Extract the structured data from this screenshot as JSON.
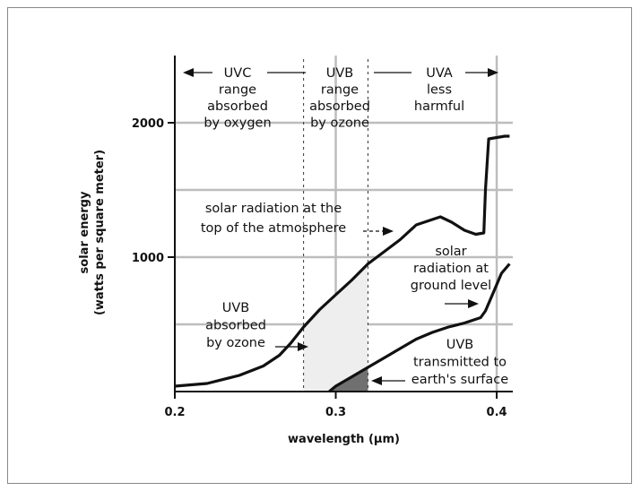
{
  "chart_data": {
    "type": "line",
    "xlabel": "wavelength (μm)",
    "ylabel_line1": "solar energy",
    "ylabel_line2": "(watts per square meter)",
    "xlim": [
      0.2,
      0.41
    ],
    "ylim": [
      0,
      2500
    ],
    "x_ticks": [
      {
        "value": 0.2,
        "label": "0.2"
      },
      {
        "value": 0.3,
        "label": "0.3"
      },
      {
        "value": 0.4,
        "label": "0.4"
      }
    ],
    "y_ticks": [
      {
        "value": 1000,
        "label": "1000"
      },
      {
        "value": 2000,
        "label": "2000"
      }
    ],
    "grid_x": [
      0.3,
      0.4
    ],
    "grid_y": [
      500,
      1000,
      1500,
      2000
    ],
    "band_boundaries": [
      0.28,
      0.32
    ],
    "series": [
      {
        "name": "solar radiation at the top of the atmosphere",
        "x": [
          0.2,
          0.22,
          0.24,
          0.255,
          0.265,
          0.272,
          0.28,
          0.29,
          0.3,
          0.31,
          0.32,
          0.33,
          0.34,
          0.35,
          0.365,
          0.372,
          0.38,
          0.387,
          0.392,
          0.393,
          0.395,
          0.405,
          0.408
        ],
        "values": [
          40,
          60,
          120,
          190,
          270,
          360,
          480,
          610,
          720,
          830,
          950,
          1040,
          1130,
          1240,
          1300,
          1260,
          1200,
          1170,
          1180,
          1500,
          1880,
          1900,
          1900
        ]
      },
      {
        "name": "solar radiation at ground level",
        "x": [
          0.296,
          0.3,
          0.31,
          0.32,
          0.33,
          0.34,
          0.35,
          0.36,
          0.37,
          0.38,
          0.39,
          0.393,
          0.398,
          0.403,
          0.408
        ],
        "values": [
          0,
          40,
          110,
          180,
          250,
          320,
          390,
          440,
          480,
          510,
          550,
          600,
          740,
          880,
          950
        ]
      }
    ],
    "annotations": {
      "uvc": [
        "UVC",
        "range",
        "absorbed",
        "by oxygen"
      ],
      "uvb_band": [
        "UVB",
        "range",
        "absorbed",
        "by ozone"
      ],
      "uva": [
        "UVA",
        "less",
        "harmful"
      ],
      "top_label": [
        "solar radiation at the",
        "top of the atmosphere"
      ],
      "ground_label": [
        "solar",
        "radiation at",
        "ground level"
      ],
      "uvb_absorbed": [
        "UVB",
        "absorbed",
        "by ozone"
      ],
      "uvb_transmitted": [
        "UVB",
        "transmitted to",
        "earth's surface"
      ]
    },
    "colors": {
      "line": "#111111",
      "grid": "#bdbdbd",
      "absorbed_fill": "#eeeeee",
      "transmitted_fill": "#707070"
    }
  }
}
